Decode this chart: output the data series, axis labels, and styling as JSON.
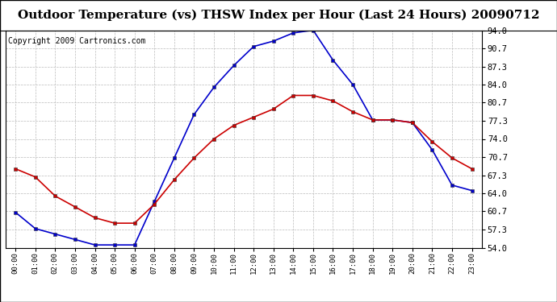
{
  "title": "Outdoor Temperature (vs) THSW Index per Hour (Last 24 Hours) 20090712",
  "copyright": "Copyright 2009 Cartronics.com",
  "hours": [
    "00:00",
    "01:00",
    "02:00",
    "03:00",
    "04:00",
    "05:00",
    "06:00",
    "07:00",
    "08:00",
    "09:00",
    "10:00",
    "11:00",
    "12:00",
    "13:00",
    "14:00",
    "15:00",
    "16:00",
    "17:00",
    "18:00",
    "19:00",
    "20:00",
    "21:00",
    "22:00",
    "23:00"
  ],
  "temp": [
    68.5,
    67.0,
    63.5,
    61.5,
    59.5,
    58.5,
    58.5,
    62.0,
    66.5,
    70.5,
    74.0,
    76.5,
    78.0,
    79.5,
    82.0,
    82.0,
    81.0,
    79.0,
    77.5,
    77.5,
    77.0,
    73.5,
    70.5,
    68.5
  ],
  "thsw": [
    60.5,
    57.5,
    56.5,
    55.5,
    54.5,
    54.5,
    54.5,
    62.5,
    70.5,
    78.5,
    83.5,
    87.5,
    91.0,
    92.0,
    93.5,
    94.0,
    88.5,
    84.0,
    77.5,
    77.5,
    77.0,
    72.0,
    65.5,
    64.5
  ],
  "ylim": [
    54.0,
    94.0
  ],
  "yticks": [
    54.0,
    57.3,
    60.7,
    64.0,
    67.3,
    70.7,
    74.0,
    77.3,
    80.7,
    84.0,
    87.3,
    90.7,
    94.0
  ],
  "temp_color": "#cc0000",
  "thsw_color": "#0000cc",
  "bg_color": "#ffffff",
  "grid_color": "#bbbbbb",
  "title_fontsize": 11,
  "copyright_fontsize": 7,
  "marker_size": 3.5,
  "linewidth": 1.2
}
